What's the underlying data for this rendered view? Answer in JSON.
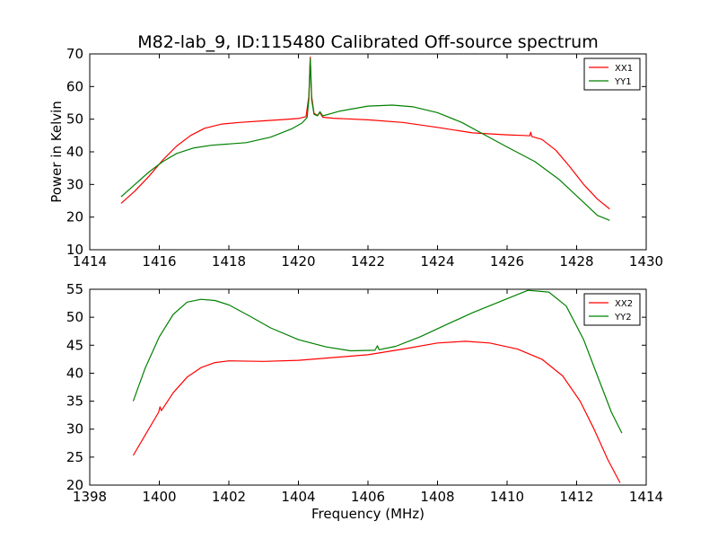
{
  "title": "M82-lab_9, ID:115480 Calibrated Off-source spectrum",
  "ylabel": "Power in Kelvin",
  "xlabel": "Frequency (MHz)",
  "colors": {
    "red": "#ff0000",
    "green": "#008000"
  },
  "chart_data": [
    {
      "type": "line",
      "xlim": [
        1414,
        1430
      ],
      "ylim": [
        10,
        70
      ],
      "xticks": [
        1414,
        1416,
        1418,
        1420,
        1422,
        1424,
        1426,
        1428,
        1430
      ],
      "yticks": [
        10,
        20,
        30,
        40,
        50,
        60,
        70
      ],
      "legend_position": "top-right",
      "grid": false,
      "series": [
        {
          "name": "XX1",
          "color": "#ff0000",
          "points": [
            [
              1414.9,
              24.2
            ],
            [
              1415.3,
              28
            ],
            [
              1415.7,
              32.5
            ],
            [
              1416.1,
              37.5
            ],
            [
              1416.5,
              41.8
            ],
            [
              1416.9,
              45
            ],
            [
              1417.3,
              47.2
            ],
            [
              1417.8,
              48.5
            ],
            [
              1418.3,
              49
            ],
            [
              1419,
              49.5
            ],
            [
              1419.6,
              49.9
            ],
            [
              1420.0,
              50.2
            ],
            [
              1420.22,
              50.8
            ],
            [
              1420.3,
              57
            ],
            [
              1420.34,
              69
            ],
            [
              1420.38,
              57
            ],
            [
              1420.45,
              51.8
            ],
            [
              1420.55,
              51.2
            ],
            [
              1420.62,
              52
            ],
            [
              1420.7,
              50.6
            ],
            [
              1421,
              50.3
            ],
            [
              1422,
              49.8
            ],
            [
              1423,
              49
            ],
            [
              1424,
              47.5
            ],
            [
              1425,
              45.8
            ],
            [
              1426,
              45.2
            ],
            [
              1426.5,
              45
            ],
            [
              1426.65,
              44.9
            ],
            [
              1426.68,
              46
            ],
            [
              1426.71,
              44.7
            ],
            [
              1427,
              43.8
            ],
            [
              1427.4,
              40.5
            ],
            [
              1427.8,
              35.5
            ],
            [
              1428.2,
              30
            ],
            [
              1428.6,
              25.5
            ],
            [
              1428.95,
              22.5
            ]
          ]
        },
        {
          "name": "YY1",
          "color": "#008000",
          "points": [
            [
              1414.9,
              26.2
            ],
            [
              1415.3,
              30
            ],
            [
              1415.7,
              33.8
            ],
            [
              1416.1,
              37
            ],
            [
              1416.5,
              39.5
            ],
            [
              1417,
              41.2
            ],
            [
              1417.5,
              42
            ],
            [
              1418.5,
              42.8
            ],
            [
              1419.2,
              44.5
            ],
            [
              1419.8,
              47
            ],
            [
              1420.1,
              48.8
            ],
            [
              1420.25,
              50.5
            ],
            [
              1420.3,
              56
            ],
            [
              1420.34,
              68.5
            ],
            [
              1420.38,
              56
            ],
            [
              1420.45,
              51.5
            ],
            [
              1420.55,
              51
            ],
            [
              1420.62,
              52.3
            ],
            [
              1420.7,
              51
            ],
            [
              1421.2,
              52.5
            ],
            [
              1422,
              54
            ],
            [
              1422.7,
              54.3
            ],
            [
              1423.3,
              53.8
            ],
            [
              1424,
              52
            ],
            [
              1424.7,
              49
            ],
            [
              1425.3,
              45.5
            ],
            [
              1426,
              41.5
            ],
            [
              1426.8,
              37
            ],
            [
              1427.5,
              31.5
            ],
            [
              1428.2,
              24.5
            ],
            [
              1428.6,
              20.5
            ],
            [
              1428.95,
              19
            ]
          ]
        }
      ]
    },
    {
      "type": "line",
      "xlim": [
        1398,
        1414
      ],
      "ylim": [
        20,
        55
      ],
      "xticks": [
        1398,
        1400,
        1402,
        1404,
        1406,
        1408,
        1410,
        1412,
        1414
      ],
      "yticks": [
        20,
        25,
        30,
        35,
        40,
        45,
        50,
        55
      ],
      "legend_position": "top-right",
      "grid": false,
      "series": [
        {
          "name": "XX2",
          "color": "#ff0000",
          "points": [
            [
              1399.25,
              25.3
            ],
            [
              1399.6,
              29
            ],
            [
              1399.98,
              33
            ],
            [
              1400.02,
              34
            ],
            [
              1400.06,
              33.3
            ],
            [
              1400.4,
              36.5
            ],
            [
              1400.8,
              39.3
            ],
            [
              1401.2,
              41
            ],
            [
              1401.6,
              41.9
            ],
            [
              1402,
              42.2
            ],
            [
              1403,
              42.1
            ],
            [
              1404,
              42.3
            ],
            [
              1405,
              42.8
            ],
            [
              1406,
              43.3
            ],
            [
              1407,
              44.3
            ],
            [
              1408,
              45.4
            ],
            [
              1408.8,
              45.7
            ],
            [
              1409.5,
              45.4
            ],
            [
              1410.3,
              44.3
            ],
            [
              1411,
              42.5
            ],
            [
              1411.6,
              39.5
            ],
            [
              1412.1,
              35
            ],
            [
              1412.5,
              30
            ],
            [
              1412.9,
              24.5
            ],
            [
              1413.25,
              20.4
            ]
          ]
        },
        {
          "name": "YY2",
          "color": "#008000",
          "points": [
            [
              1399.25,
              35
            ],
            [
              1399.6,
              41
            ],
            [
              1400,
              46.5
            ],
            [
              1400.4,
              50.5
            ],
            [
              1400.8,
              52.7
            ],
            [
              1401.2,
              53.2
            ],
            [
              1401.6,
              53
            ],
            [
              1402,
              52.2
            ],
            [
              1402.6,
              50.2
            ],
            [
              1403.2,
              48.1
            ],
            [
              1404,
              46
            ],
            [
              1404.8,
              44.7
            ],
            [
              1405.5,
              44
            ],
            [
              1406.2,
              44.1
            ],
            [
              1406.27,
              44.9
            ],
            [
              1406.32,
              44.2
            ],
            [
              1406.8,
              44.8
            ],
            [
              1407.5,
              46.5
            ],
            [
              1408.3,
              48.8
            ],
            [
              1409,
              50.8
            ],
            [
              1409.8,
              52.8
            ],
            [
              1410.6,
              54.8
            ],
            [
              1411.2,
              54.5
            ],
            [
              1411.7,
              52
            ],
            [
              1412.2,
              46
            ],
            [
              1412.6,
              39.5
            ],
            [
              1413,
              33
            ],
            [
              1413.3,
              29.3
            ]
          ]
        }
      ]
    }
  ]
}
